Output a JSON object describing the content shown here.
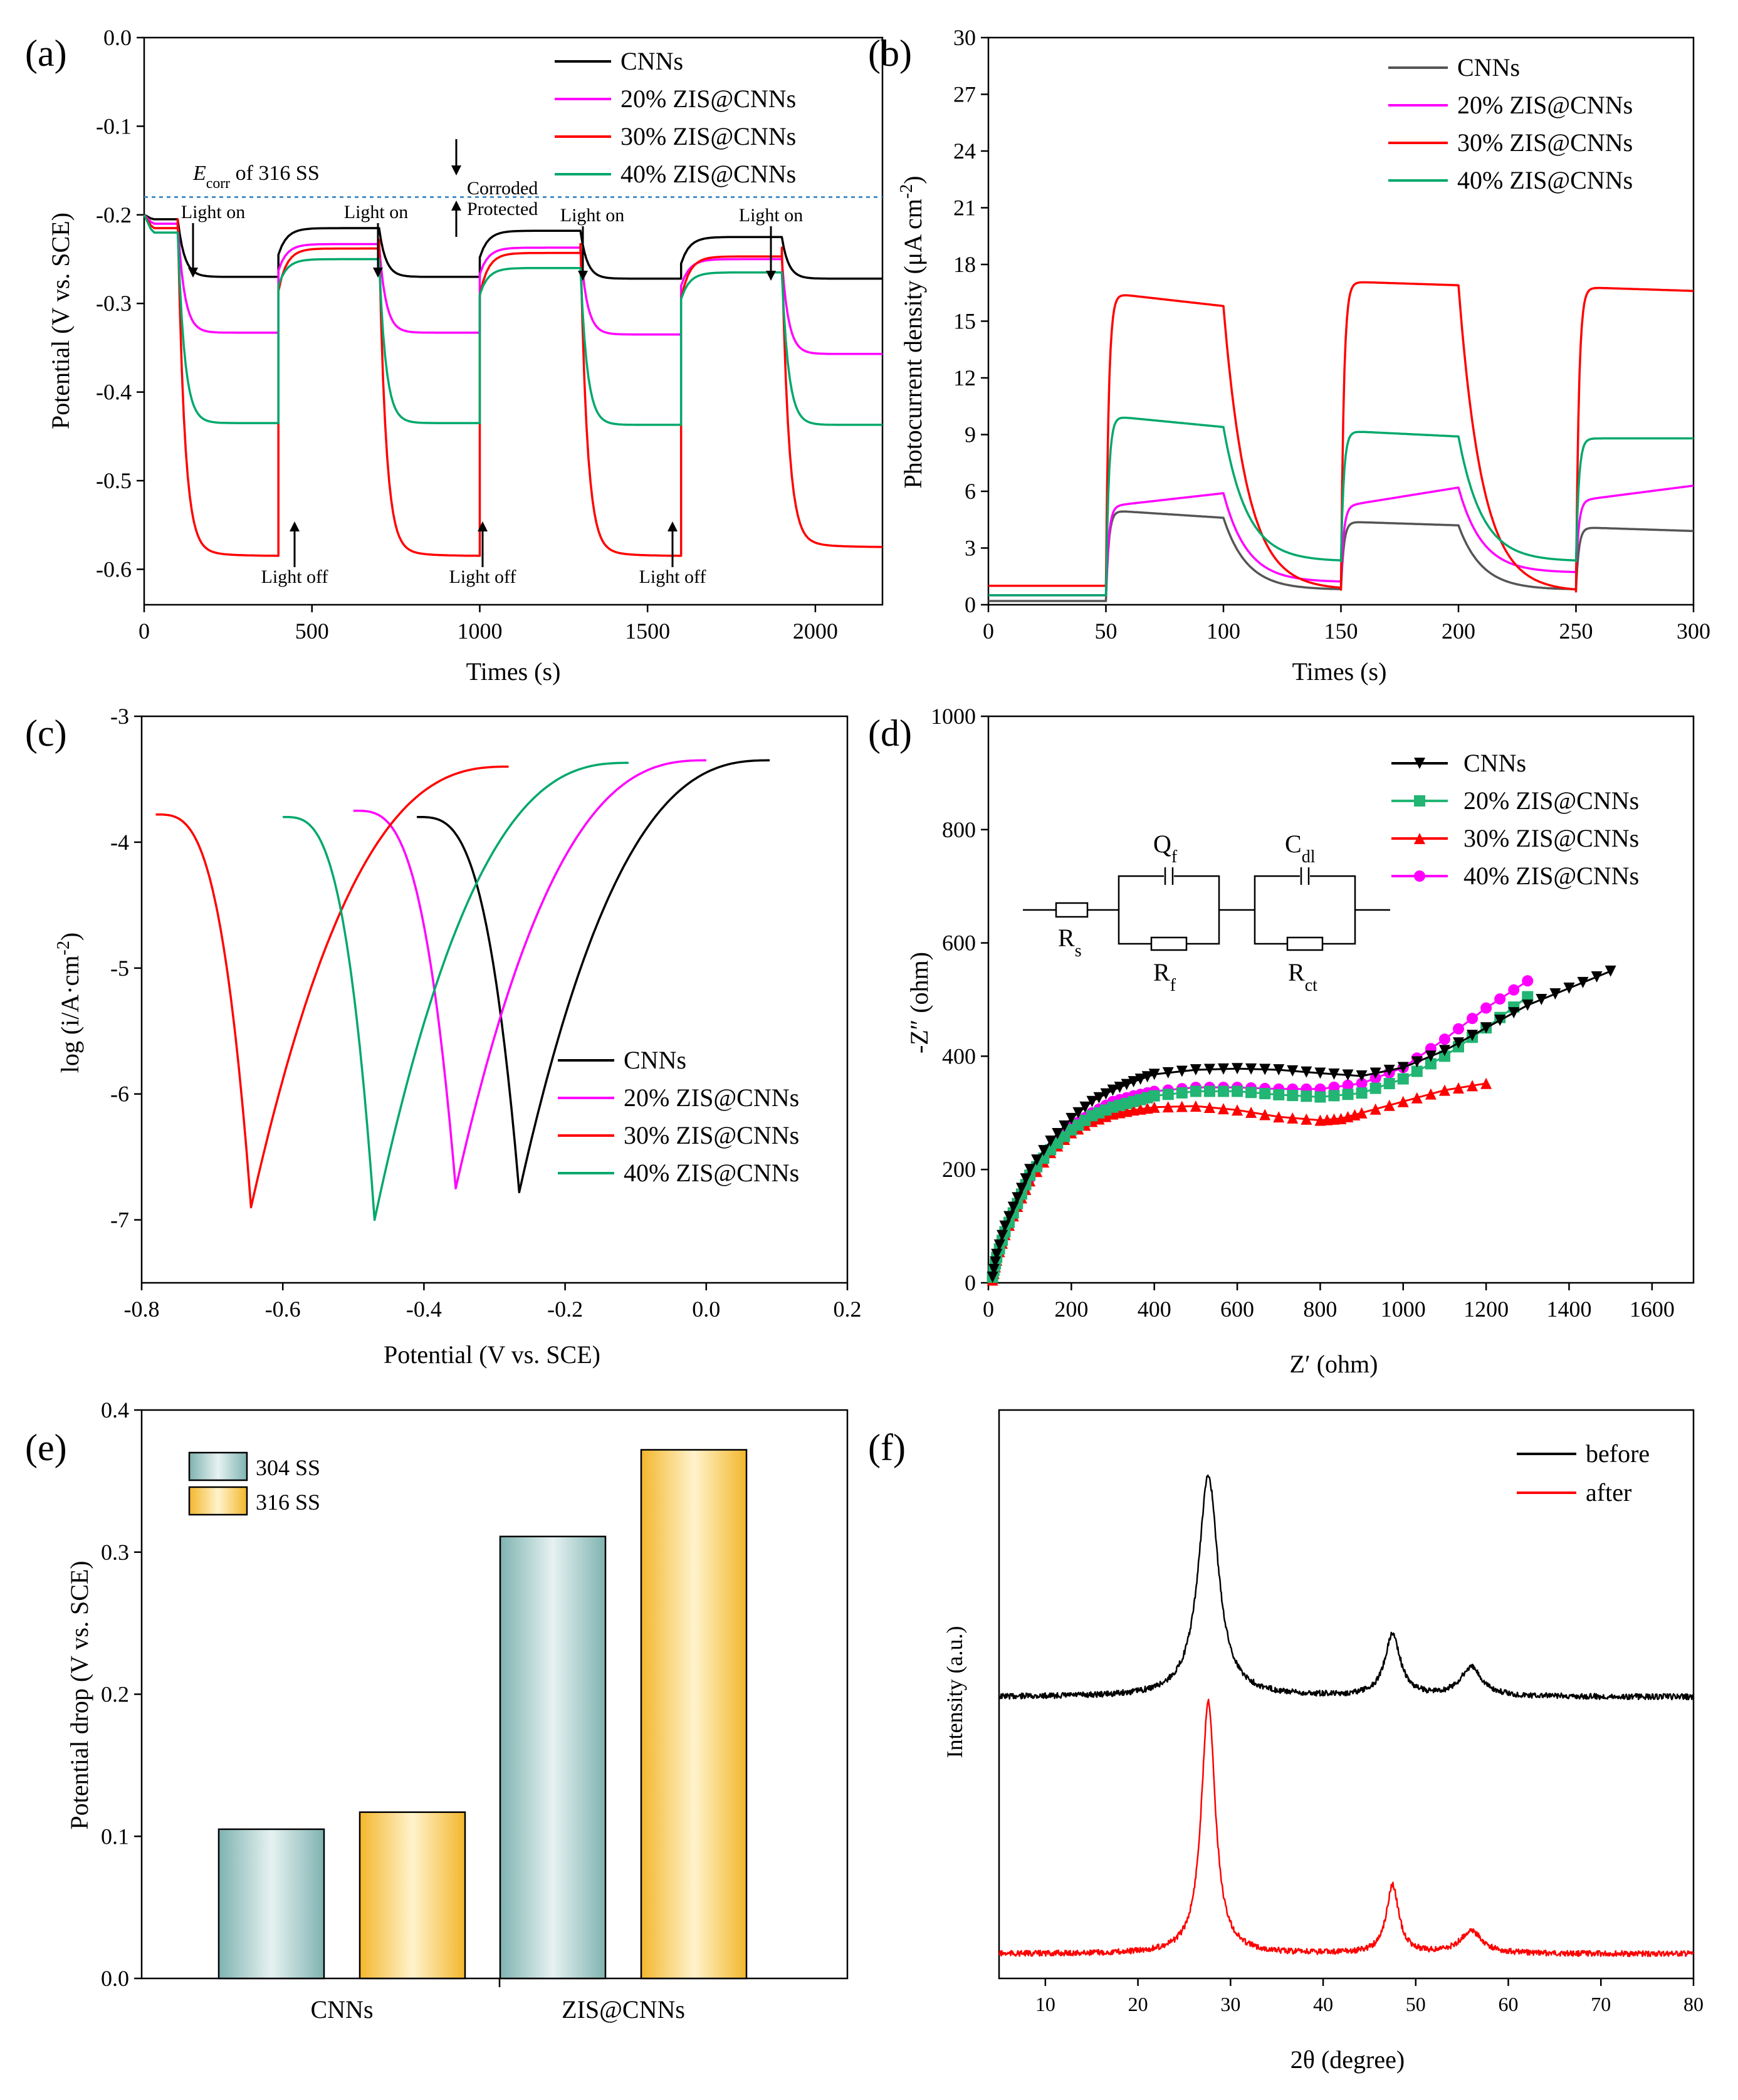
{
  "colors": {
    "cnns": "#000000",
    "zis20": "#ff00ff",
    "zis30": "#ff0000",
    "zis40": "#00a86b",
    "gray": "#555555",
    "teal": "#9cc6c5",
    "gold": "#f6c24b",
    "dash": "#4a90c8"
  },
  "panels": {
    "a": {
      "letter": "(a)",
      "xlabel": "Times (s)",
      "ylabel": "Potential (V vs. SCE)",
      "legend": [
        "CNNs",
        "20% ZIS@CNNs",
        "30% ZIS@CNNs",
        "40% ZIS@CNNs"
      ],
      "ecorr_label": "E",
      "ecorr_sub": "corr",
      "ecorr_rest": " of 316 SS",
      "corroded": "Corroded",
      "protected": "Protected",
      "light_on": "Light on",
      "light_off": "Light off"
    },
    "b": {
      "letter": "(b)",
      "xlabel": "Times (s)",
      "ylabel": "Photocurrent density  (μA cm",
      "ylabel_sup": "-2",
      "ylabel_end": ")",
      "legend": [
        "CNNs",
        "20% ZIS@CNNs",
        "30% ZIS@CNNs",
        "40% ZIS@CNNs"
      ]
    },
    "c": {
      "letter": "(c)",
      "xlabel": "Potential (V vs. SCE)",
      "ylabel": "log (i/A·cm",
      "ylabel_sup": "-2",
      "ylabel_end": ")",
      "legend": [
        "CNNs",
        "20% ZIS@CNNs",
        "30% ZIS@CNNs",
        "40% ZIS@CNNs"
      ]
    },
    "d": {
      "letter": "(d)",
      "xlabel": "Z′ (ohm)",
      "ylabel": "-Z″ (ohm)",
      "legend": [
        "CNNs",
        "20% ZIS@CNNs",
        "30% ZIS@CNNs",
        "40% ZIS@CNNs"
      ],
      "circuit": {
        "rs": "R",
        "rs_sub": "s",
        "qf": "Q",
        "qf_sub": "f",
        "rf": "R",
        "rf_sub": "f",
        "cdl": "C",
        "cdl_sub": "dl",
        "rct": "R",
        "rct_sub": "ct"
      }
    },
    "e": {
      "letter": "(e)",
      "ylabel": "Potential drop (V vs. SCE)",
      "legend": [
        "304 SS",
        "316 SS"
      ]
    },
    "f": {
      "letter": "(f)",
      "xlabel": "2θ (degree)",
      "ylabel": "Intensity (a.u.)",
      "legend": [
        "before",
        "after"
      ]
    }
  },
  "chart_data": [
    {
      "type": "line",
      "panel": "a",
      "xlabel": "Times (s)",
      "ylabel": "Potential (V vs. SCE)",
      "xlim": [
        0,
        2200
      ],
      "ylim": [
        -0.64,
        0
      ],
      "xticks": [
        0,
        500,
        1000,
        1500,
        2000
      ],
      "yticks": [
        0.0,
        -0.1,
        -0.2,
        -0.3,
        -0.4,
        -0.5,
        -0.6
      ],
      "xtick_labels": [
        "0",
        "500",
        "1000",
        "1500",
        "2000"
      ],
      "ytick_labels": [
        "0.0",
        "-0.1",
        "-0.2",
        "-0.3",
        "-0.4",
        "-0.5",
        "-0.6"
      ],
      "reference_line": {
        "label": "Ecorr of 316 SS",
        "y": -0.18
      },
      "light_on_times": [
        100,
        700,
        1300,
        1900
      ],
      "light_off_times": [
        400,
        1000,
        1600
      ],
      "series": [
        {
          "name": "CNNs",
          "dark": [
            -0.205,
            -0.215,
            -0.218,
            -0.225
          ],
          "light": [
            -0.27,
            -0.27,
            -0.272,
            -0.272
          ]
        },
        {
          "name": "20% ZIS@CNNs",
          "dark": [
            -0.21,
            -0.233,
            -0.237,
            -0.25
          ],
          "light": [
            -0.333,
            -0.333,
            -0.335,
            -0.357
          ]
        },
        {
          "name": "30% ZIS@CNNs",
          "dark": [
            -0.215,
            -0.238,
            -0.243,
            -0.247
          ],
          "light": [
            -0.585,
            -0.585,
            -0.585,
            -0.575
          ]
        },
        {
          "name": "40% ZIS@CNNs",
          "dark": [
            -0.22,
            -0.25,
            -0.26,
            -0.265
          ],
          "light": [
            -0.435,
            -0.435,
            -0.437,
            -0.437
          ]
        }
      ]
    },
    {
      "type": "line",
      "panel": "b",
      "xlabel": "Times (s)",
      "ylabel": "Photocurrent density (μA cm-2)",
      "xlim": [
        0,
        300
      ],
      "ylim": [
        0,
        30
      ],
      "xticks": [
        0,
        50,
        100,
        150,
        200,
        250,
        300
      ],
      "yticks": [
        0,
        3,
        6,
        9,
        12,
        15,
        18,
        21,
        24,
        27,
        30
      ],
      "xtick_labels": [
        "0",
        "50",
        "100",
        "150",
        "200",
        "250",
        "300"
      ],
      "ytick_labels": [
        "0",
        "3",
        "6",
        "9",
        "12",
        "15",
        "18",
        "21",
        "24",
        "27",
        "30"
      ],
      "light_on": [
        [
          50,
          100
        ],
        [
          150,
          200
        ],
        [
          250,
          300
        ]
      ],
      "series": [
        {
          "name": "CNNs",
          "dark": 0.2,
          "on": [
            [
              5.0,
              4.6
            ],
            [
              4.4,
              4.2
            ],
            [
              4.1,
              3.9
            ]
          ],
          "off_end": [
            0.8,
            0.8
          ]
        },
        {
          "name": "20% ZIS@CNNs",
          "dark": 0.5,
          "on": [
            [
              5.2,
              5.9
            ],
            [
              5.2,
              6.2
            ],
            [
              5.5,
              6.3
            ]
          ],
          "off_end": [
            1.2,
            1.7
          ]
        },
        {
          "name": "30% ZIS@CNNs",
          "dark": 1.0,
          "on": [
            [
              16.5,
              15.8
            ],
            [
              17.1,
              16.9
            ],
            [
              16.8,
              16.6
            ]
          ],
          "off_end": [
            0.8,
            0.7
          ]
        },
        {
          "name": "40% ZIS@CNNs",
          "dark": 0.5,
          "on": [
            [
              10.0,
              9.4
            ],
            [
              9.2,
              8.9
            ],
            [
              8.8,
              8.8
            ]
          ],
          "off_end": [
            2.3,
            2.3
          ]
        }
      ]
    },
    {
      "type": "line",
      "panel": "c",
      "xlabel": "Potential (V vs. SCE)",
      "ylabel": "log (i/A·cm-2)",
      "xlim": [
        -0.8,
        0.2
      ],
      "ylim": [
        -7.5,
        -3
      ],
      "xticks": [
        -0.8,
        -0.6,
        -0.4,
        -0.2,
        0.0,
        0.2
      ],
      "yticks": [
        -3,
        -4,
        -5,
        -6,
        -7
      ],
      "xtick_labels": [
        "-0.8",
        "-0.6",
        "-0.4",
        "-0.2",
        "0.0",
        "0.2"
      ],
      "ytick_labels": [
        "-3",
        "-4",
        "-5",
        "-6",
        "-7"
      ],
      "series": [
        {
          "name": "CNNs",
          "ecorr": -0.265,
          "min": -6.78,
          "start": [
            -0.41,
            -3.8
          ],
          "end": [
            0.09,
            -3.35
          ]
        },
        {
          "name": "20% ZIS@CNNs",
          "ecorr": -0.355,
          "min": -6.75,
          "start": [
            -0.5,
            -3.75
          ],
          "end": [
            0.0,
            -3.35
          ]
        },
        {
          "name": "30% ZIS@CNNs",
          "ecorr": -0.645,
          "min": -6.9,
          "start": [
            -0.78,
            -3.78
          ],
          "end": [
            -0.28,
            -3.4
          ]
        },
        {
          "name": "40% ZIS@CNNs",
          "ecorr": -0.47,
          "min": -7.0,
          "start": [
            -0.6,
            -3.8
          ],
          "end": [
            -0.11,
            -3.37
          ]
        }
      ]
    },
    {
      "type": "scatter",
      "panel": "d",
      "xlabel": "Z′ (ohm)",
      "ylabel": "-Z″ (ohm)",
      "xlim": [
        0,
        1700
      ],
      "ylim": [
        0,
        1000
      ],
      "xticks": [
        0,
        200,
        400,
        600,
        800,
        1000,
        1200,
        1400,
        1600
      ],
      "yticks": [
        0,
        200,
        400,
        600,
        800,
        1000
      ],
      "xtick_labels": [
        "0",
        "200",
        "400",
        "600",
        "800",
        "1000",
        "1200",
        "1400",
        "1600"
      ],
      "ytick_labels": [
        "0",
        "200",
        "400",
        "600",
        "800",
        "1000"
      ],
      "series": [
        {
          "name": "CNNs",
          "marker": "triangle-down",
          "points": [
            [
              10,
              10
            ],
            [
              20,
              50
            ],
            [
              40,
              100
            ],
            [
              70,
              150
            ],
            [
              100,
              200
            ],
            [
              150,
              250
            ],
            [
              200,
              290
            ],
            [
              250,
              320
            ],
            [
              300,
              340
            ],
            [
              350,
              355
            ],
            [
              400,
              368
            ],
            [
              500,
              376
            ],
            [
              600,
              378
            ],
            [
              700,
              376
            ],
            [
              800,
              370
            ],
            [
              900,
              365
            ],
            [
              1000,
              380
            ],
            [
              1100,
              410
            ],
            [
              1200,
              450
            ],
            [
              1300,
              490
            ],
            [
              1400,
              520
            ],
            [
              1500,
              550
            ]
          ]
        },
        {
          "name": "20% ZIS@CNNs",
          "marker": "square",
          "points": [
            [
              10,
              10
            ],
            [
              20,
              45
            ],
            [
              40,
              90
            ],
            [
              70,
              140
            ],
            [
              100,
              190
            ],
            [
              150,
              235
            ],
            [
              200,
              270
            ],
            [
              250,
              295
            ],
            [
              300,
              310
            ],
            [
              350,
              320
            ],
            [
              400,
              330
            ],
            [
              500,
              338
            ],
            [
              600,
              338
            ],
            [
              700,
              332
            ],
            [
              800,
              328
            ],
            [
              900,
              335
            ],
            [
              1000,
              360
            ],
            [
              1100,
              400
            ],
            [
              1200,
              450
            ],
            [
              1300,
              505
            ]
          ]
        },
        {
          "name": "30% ZIS@CNNs",
          "marker": "triangle-up",
          "points": [
            [
              10,
              5
            ],
            [
              20,
              40
            ],
            [
              40,
              85
            ],
            [
              70,
              135
            ],
            [
              100,
              180
            ],
            [
              150,
              230
            ],
            [
              200,
              265
            ],
            [
              250,
              285
            ],
            [
              300,
              298
            ],
            [
              350,
              305
            ],
            [
              400,
              310
            ],
            [
              500,
              312
            ],
            [
              600,
              305
            ],
            [
              700,
              293
            ],
            [
              800,
              287
            ],
            [
              850,
              290
            ],
            [
              900,
              300
            ],
            [
              1000,
              320
            ],
            [
              1100,
              340
            ],
            [
              1200,
              352
            ]
          ]
        },
        {
          "name": "40% ZIS@CNNs",
          "marker": "circle",
          "points": [
            [
              10,
              10
            ],
            [
              20,
              45
            ],
            [
              40,
              90
            ],
            [
              70,
              140
            ],
            [
              100,
              185
            ],
            [
              150,
              235
            ],
            [
              200,
              275
            ],
            [
              250,
              300
            ],
            [
              300,
              320
            ],
            [
              350,
              330
            ],
            [
              400,
              338
            ],
            [
              500,
              345
            ],
            [
              600,
              345
            ],
            [
              700,
              342
            ],
            [
              800,
              342
            ],
            [
              900,
              352
            ],
            [
              1000,
              380
            ],
            [
              1100,
              430
            ],
            [
              1200,
              485
            ],
            [
              1300,
              533
            ]
          ]
        }
      ]
    },
    {
      "type": "bar",
      "panel": "e",
      "ylabel": "Potential drop (V vs. SCE)",
      "ylim": [
        0,
        0.4
      ],
      "yticks": [
        0.0,
        0.1,
        0.2,
        0.3,
        0.4
      ],
      "ytick_labels": [
        "0.0",
        "0.1",
        "0.2",
        "0.3",
        "0.4"
      ],
      "categories": [
        "CNNs",
        "ZIS@CNNs"
      ],
      "series": [
        {
          "name": "304 SS",
          "values": [
            0.105,
            0.311
          ]
        },
        {
          "name": "316 SS",
          "values": [
            0.117,
            0.372
          ]
        }
      ]
    },
    {
      "type": "line",
      "panel": "f",
      "xlabel": "2θ (degree)",
      "ylabel": "Intensity (a.u.)",
      "xlim": [
        5,
        80
      ],
      "xticks": [
        10,
        20,
        30,
        40,
        50,
        60,
        70,
        80
      ],
      "xtick_labels": [
        "10",
        "20",
        "30",
        "40",
        "50",
        "60",
        "70",
        "80"
      ],
      "series": [
        {
          "name": "before",
          "peaks": [
            {
              "pos": 27.6,
              "height": 1.0,
              "width": 1.3
            },
            {
              "pos": 47.5,
              "height": 0.28,
              "width": 1.0
            },
            {
              "pos": 56.0,
              "height": 0.13,
              "width": 1.4
            }
          ]
        },
        {
          "name": "after",
          "peaks": [
            {
              "pos": 27.6,
              "height": 1.0,
              "width": 0.9
            },
            {
              "pos": 47.5,
              "height": 0.27,
              "width": 0.8
            },
            {
              "pos": 56.0,
              "height": 0.09,
              "width": 1.4
            }
          ]
        }
      ]
    }
  ]
}
